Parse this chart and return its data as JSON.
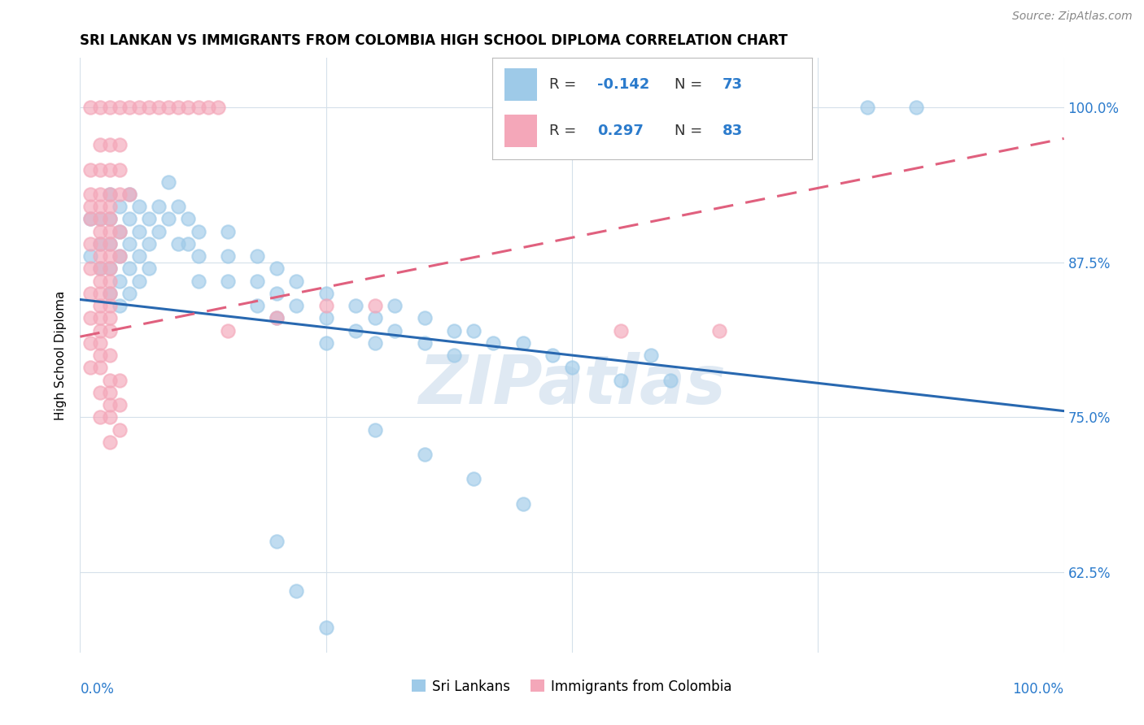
{
  "title": "SRI LANKAN VS IMMIGRANTS FROM COLOMBIA HIGH SCHOOL DIPLOMA CORRELATION CHART",
  "source": "Source: ZipAtlas.com",
  "ylabel": "High School Diploma",
  "sri_lankan_R": -0.142,
  "sri_lankan_N": 73,
  "colombia_R": 0.297,
  "colombia_N": 83,
  "sri_lankan_color": "#9ecae8",
  "colombia_color": "#f4a7b9",
  "sri_lankan_line_color": "#2868b0",
  "colombia_line_color": "#e0607e",
  "watermark": "ZIPatlas",
  "watermark_color": "#c5d8ea",
  "legend_label_blue": "Sri Lankans",
  "legend_label_pink": "Immigrants from Colombia",
  "y_tick_vals": [
    62.5,
    75.0,
    87.5,
    100.0
  ],
  "y_tick_labels": [
    "62.5%",
    "75.0%",
    "87.5%",
    "100.0%"
  ],
  "xlim": [
    0,
    100
  ],
  "ylim": [
    56,
    104
  ],
  "blue_line": [
    0,
    84.5,
    100,
    75.5
  ],
  "pink_line": [
    0,
    81.5,
    100,
    97.5
  ],
  "sri_lankans_points": [
    [
      1,
      88
    ],
    [
      1,
      91
    ],
    [
      2,
      91
    ],
    [
      2,
      89
    ],
    [
      2,
      87
    ],
    [
      3,
      93
    ],
    [
      3,
      91
    ],
    [
      3,
      89
    ],
    [
      3,
      87
    ],
    [
      3,
      85
    ],
    [
      4,
      92
    ],
    [
      4,
      90
    ],
    [
      4,
      88
    ],
    [
      4,
      86
    ],
    [
      4,
      84
    ],
    [
      5,
      93
    ],
    [
      5,
      91
    ],
    [
      5,
      89
    ],
    [
      5,
      87
    ],
    [
      5,
      85
    ],
    [
      6,
      92
    ],
    [
      6,
      90
    ],
    [
      6,
      88
    ],
    [
      6,
      86
    ],
    [
      7,
      91
    ],
    [
      7,
      89
    ],
    [
      7,
      87
    ],
    [
      8,
      92
    ],
    [
      8,
      90
    ],
    [
      9,
      94
    ],
    [
      9,
      91
    ],
    [
      10,
      92
    ],
    [
      10,
      89
    ],
    [
      11,
      91
    ],
    [
      11,
      89
    ],
    [
      12,
      90
    ],
    [
      12,
      88
    ],
    [
      12,
      86
    ],
    [
      15,
      90
    ],
    [
      15,
      88
    ],
    [
      15,
      86
    ],
    [
      18,
      88
    ],
    [
      18,
      86
    ],
    [
      18,
      84
    ],
    [
      20,
      87
    ],
    [
      20,
      85
    ],
    [
      20,
      83
    ],
    [
      22,
      86
    ],
    [
      22,
      84
    ],
    [
      25,
      85
    ],
    [
      25,
      83
    ],
    [
      25,
      81
    ],
    [
      28,
      84
    ],
    [
      28,
      82
    ],
    [
      30,
      83
    ],
    [
      30,
      81
    ],
    [
      32,
      84
    ],
    [
      32,
      82
    ],
    [
      35,
      83
    ],
    [
      35,
      81
    ],
    [
      38,
      82
    ],
    [
      38,
      80
    ],
    [
      40,
      82
    ],
    [
      42,
      81
    ],
    [
      45,
      81
    ],
    [
      48,
      80
    ],
    [
      50,
      79
    ],
    [
      55,
      78
    ],
    [
      58,
      80
    ],
    [
      60,
      78
    ],
    [
      30,
      74
    ],
    [
      35,
      72
    ],
    [
      40,
      70
    ],
    [
      45,
      68
    ],
    [
      80,
      100
    ],
    [
      85,
      100
    ],
    [
      20,
      65
    ],
    [
      22,
      61
    ],
    [
      25,
      58
    ]
  ],
  "colombia_points": [
    [
      1,
      100
    ],
    [
      2,
      100
    ],
    [
      3,
      100
    ],
    [
      4,
      100
    ],
    [
      5,
      100
    ],
    [
      6,
      100
    ],
    [
      7,
      100
    ],
    [
      8,
      100
    ],
    [
      9,
      100
    ],
    [
      10,
      100
    ],
    [
      11,
      100
    ],
    [
      12,
      100
    ],
    [
      13,
      100
    ],
    [
      14,
      100
    ],
    [
      2,
      97
    ],
    [
      3,
      97
    ],
    [
      4,
      97
    ],
    [
      1,
      95
    ],
    [
      2,
      95
    ],
    [
      3,
      95
    ],
    [
      4,
      95
    ],
    [
      1,
      93
    ],
    [
      2,
      93
    ],
    [
      3,
      93
    ],
    [
      4,
      93
    ],
    [
      5,
      93
    ],
    [
      1,
      92
    ],
    [
      2,
      92
    ],
    [
      3,
      92
    ],
    [
      1,
      91
    ],
    [
      2,
      91
    ],
    [
      3,
      91
    ],
    [
      2,
      90
    ],
    [
      3,
      90
    ],
    [
      4,
      90
    ],
    [
      1,
      89
    ],
    [
      2,
      89
    ],
    [
      3,
      89
    ],
    [
      2,
      88
    ],
    [
      3,
      88
    ],
    [
      4,
      88
    ],
    [
      1,
      87
    ],
    [
      2,
      87
    ],
    [
      3,
      87
    ],
    [
      2,
      86
    ],
    [
      3,
      86
    ],
    [
      1,
      85
    ],
    [
      2,
      85
    ],
    [
      3,
      85
    ],
    [
      2,
      84
    ],
    [
      3,
      84
    ],
    [
      1,
      83
    ],
    [
      2,
      83
    ],
    [
      3,
      83
    ],
    [
      2,
      82
    ],
    [
      3,
      82
    ],
    [
      1,
      81
    ],
    [
      2,
      81
    ],
    [
      2,
      80
    ],
    [
      3,
      80
    ],
    [
      1,
      79
    ],
    [
      2,
      79
    ],
    [
      3,
      78
    ],
    [
      4,
      78
    ],
    [
      2,
      77
    ],
    [
      3,
      77
    ],
    [
      3,
      76
    ],
    [
      4,
      76
    ],
    [
      2,
      75
    ],
    [
      3,
      75
    ],
    [
      4,
      74
    ],
    [
      3,
      73
    ],
    [
      15,
      82
    ],
    [
      20,
      83
    ],
    [
      25,
      84
    ],
    [
      30,
      84
    ],
    [
      55,
      82
    ],
    [
      65,
      82
    ]
  ]
}
